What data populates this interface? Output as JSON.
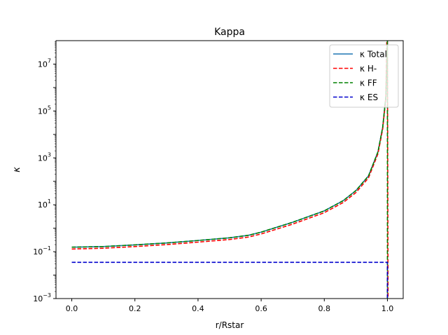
{
  "chart_data": {
    "type": "line",
    "title": "Kappa",
    "xlabel": "r/Rstar",
    "ylabel": "κ",
    "yscale": "log",
    "xlim": [
      -0.05,
      1.05
    ],
    "ylim": [
      0.001,
      100000000
    ],
    "xticks": [
      {
        "value": 0.0,
        "label": "0.0"
      },
      {
        "value": 0.2,
        "label": "0.2"
      },
      {
        "value": 0.4,
        "label": "0.4"
      },
      {
        "value": 0.6,
        "label": "0.6"
      },
      {
        "value": 0.8,
        "label": "0.8"
      },
      {
        "value": 1.0,
        "label": "1.0"
      }
    ],
    "yticks": [
      {
        "value": 0.001,
        "base": "10",
        "exp": "−3"
      },
      {
        "value": 0.1,
        "base": "10",
        "exp": "−1"
      },
      {
        "value": 10,
        "base": "10",
        "exp": "1"
      },
      {
        "value": 1000,
        "base": "10",
        "exp": "3"
      },
      {
        "value": 100000,
        "base": "10",
        "exp": "5"
      },
      {
        "value": 10000000,
        "base": "10",
        "exp": "7"
      }
    ],
    "legend_position": "top-right",
    "series": [
      {
        "name": "κ Total",
        "color": "#1f77b4",
        "style": "solid",
        "x": [
          0.0,
          0.1,
          0.2,
          0.3,
          0.4,
          0.5,
          0.56,
          0.6,
          0.7,
          0.8,
          0.86,
          0.9,
          0.94,
          0.97,
          0.985,
          0.995,
          1.0
        ],
        "y": [
          0.155,
          0.165,
          0.195,
          0.235,
          0.3,
          0.39,
          0.5,
          0.68,
          1.8,
          5.5,
          15,
          40,
          170,
          1800,
          20000,
          400000,
          100000000
        ]
      },
      {
        "name": "κ H-",
        "color": "#ff0000",
        "style": "dashed",
        "x": [
          0.0,
          0.1,
          0.2,
          0.3,
          0.4,
          0.5,
          0.56,
          0.6,
          0.7,
          0.8,
          0.86,
          0.9,
          0.94,
          0.97,
          0.985,
          0.995,
          0.998,
          1.0,
          1.002
        ],
        "y": [
          0.13,
          0.14,
          0.165,
          0.2,
          0.255,
          0.33,
          0.42,
          0.57,
          1.5,
          4.6,
          12.5,
          33,
          140,
          1500,
          17000,
          350000,
          100000000,
          100000000,
          0.001
        ]
      },
      {
        "name": "κ FF",
        "color": "#008000",
        "style": "dashed",
        "x": [
          0.0,
          0.1,
          0.2,
          0.3,
          0.4,
          0.5,
          0.56,
          0.6,
          0.7,
          0.8,
          0.86,
          0.9,
          0.94,
          0.97,
          0.985,
          0.995,
          1.0,
          1.0
        ],
        "y": [
          0.155,
          0.165,
          0.195,
          0.235,
          0.3,
          0.39,
          0.5,
          0.68,
          1.8,
          5.5,
          15,
          40,
          170,
          1800,
          20000,
          400000,
          100000000,
          0.001
        ]
      },
      {
        "name": "κ ES",
        "color": "#0000cd",
        "style": "dashed",
        "x": [
          0.0,
          0.999,
          1.0,
          1.0
        ],
        "y": [
          0.035,
          0.035,
          0.035,
          0.001
        ]
      }
    ]
  }
}
